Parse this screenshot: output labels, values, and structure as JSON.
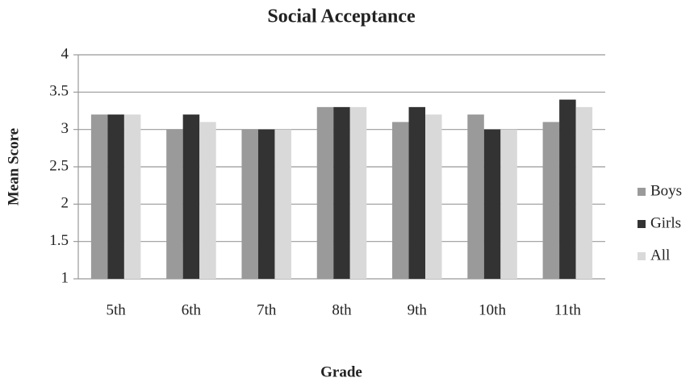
{
  "chart_data": {
    "type": "bar",
    "title": "Social Acceptance",
    "xlabel": "Grade",
    "ylabel": "Mean Score",
    "categories": [
      "5th",
      "6th",
      "7th",
      "8th",
      "9th",
      "10th",
      "11th"
    ],
    "series": [
      {
        "name": "Boys",
        "color": "#9a9a9a",
        "values": [
          3.2,
          3.0,
          3.0,
          3.3,
          3.1,
          3.2,
          3.1
        ]
      },
      {
        "name": "Girls",
        "color": "#333333",
        "values": [
          3.2,
          3.2,
          3.0,
          3.3,
          3.3,
          3.0,
          3.4
        ]
      },
      {
        "name": "All",
        "color": "#d9d9d9",
        "values": [
          3.2,
          3.1,
          3.0,
          3.3,
          3.2,
          3.0,
          3.3
        ]
      }
    ],
    "ylim": [
      1,
      4
    ],
    "yticks": [
      1,
      1.5,
      2,
      2.5,
      3,
      3.5,
      4
    ],
    "grid": true,
    "legend": "right"
  }
}
